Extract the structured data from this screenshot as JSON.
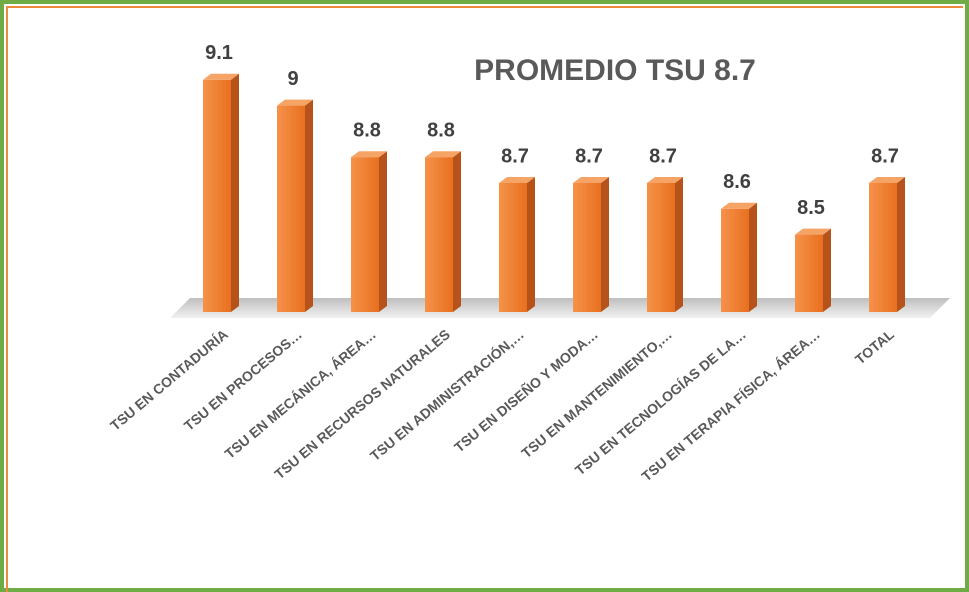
{
  "chart_data": {
    "type": "bar3d",
    "title": "PROMEDIO TSU 8.7",
    "categories": [
      "TSU EN CONTADURÍA",
      "TSU EN PROCESOS…",
      "TSU EN MECÁNICA, ÁREA…",
      "TSU EN RECURSOS NATURALES",
      "TSU EN ADMINISTRACIÓN,…",
      "TSU EN DISEÑO Y MODA…",
      "TSU EN MANTENIMIENTO,…",
      "TSU EN TECNOLOGÍAS DE LA…",
      "TSU EN TERAPIA FÍSICA, ÁREA…",
      "TOTAL"
    ],
    "values": [
      9.1,
      9,
      8.8,
      8.8,
      8.7,
      8.7,
      8.7,
      8.6,
      8.5,
      8.7
    ],
    "color": "#ee7b2c",
    "ylim": [
      8.2,
      9.2
    ]
  }
}
